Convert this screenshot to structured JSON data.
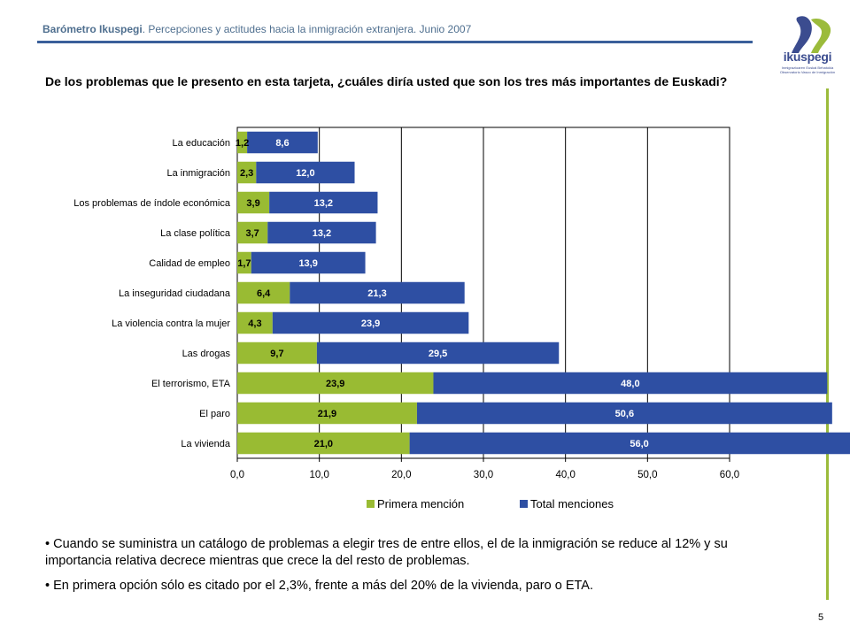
{
  "header": {
    "brand": "Barómetro Ikuspegi",
    "subtitle": ". Percepciones y actitudes hacia la inmigración extranjera. Junio 2007"
  },
  "logo": {
    "word": "ikuspegi",
    "subline1": "Inmigrazioaren Euskal Behatokia",
    "subline2": "Observatorio Vasco de Inmigración"
  },
  "question": "De los problemas que le presento en esta tarjeta, ¿cuáles diría usted que son los tres más importantes de Euskadi?",
  "chart_data": {
    "type": "bar",
    "orientation": "horizontal",
    "categories": [
      "La educación",
      "La inmigración",
      "Los problemas de índole económica",
      "La clase política",
      "Calidad de empleo",
      "La inseguridad ciudadana",
      "La violencia contra la mujer",
      "Las drogas",
      "El terrorismo, ETA",
      "El paro",
      "La vivienda"
    ],
    "series": [
      {
        "name": "Primera mención",
        "color": "#99bb33",
        "values": [
          1.2,
          2.3,
          3.9,
          3.7,
          1.7,
          6.4,
          4.3,
          9.7,
          23.9,
          21.9,
          21.0
        ],
        "labels": [
          "1,2",
          "2,3",
          "3,9",
          "3,7",
          "1,7",
          "6,4",
          "4,3",
          "9,7",
          "23,9",
          "21,9",
          "21,0"
        ]
      },
      {
        "name": "Total menciones",
        "color": "#2e4fa3",
        "values": [
          8.6,
          12.0,
          13.2,
          13.2,
          13.9,
          21.3,
          23.9,
          29.5,
          48.0,
          50.6,
          56.0
        ],
        "labels": [
          "8,6",
          "12,0",
          "13,2",
          "13,2",
          "13,9",
          "21,3",
          "23,9",
          "29,5",
          "48,0",
          "50,6",
          "56,0"
        ]
      }
    ],
    "xlim": [
      0,
      60
    ],
    "xticks": [
      "0,0",
      "10,0",
      "20,0",
      "30,0",
      "40,0",
      "50,0",
      "60,0"
    ],
    "grid": true,
    "legend_position": "bottom"
  },
  "bullets": [
    "• Cuando se suministra un catálogo de problemas a elegir tres de entre ellos, el de la inmigración se reduce al 12% y su  importancia relativa decrece mientras que crece la del resto de problemas.",
    "• En primera opción sólo es citado por el 2,3%, frente a más del 20% de la vivienda, paro o ETA."
  ],
  "page_number": "5"
}
